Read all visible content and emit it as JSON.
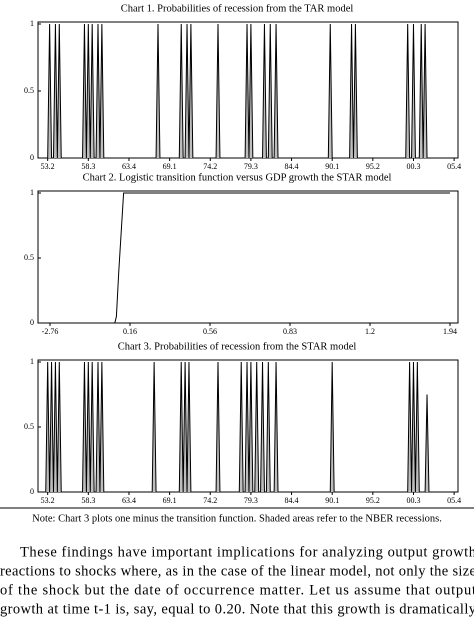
{
  "chart_data": [
    {
      "type": "line",
      "title": "Chart 1. Probabilities of recession from the TAR model",
      "color": "#000000",
      "fill_color": "#bdbdbd",
      "x": [
        0,
        1,
        2,
        3,
        4,
        5,
        5,
        6,
        7,
        18,
        19,
        20,
        20,
        21,
        22,
        22,
        23,
        24,
        25,
        26,
        27,
        27,
        28,
        29,
        56,
        57,
        58,
        68,
        69,
        70,
        71,
        72,
        73,
        73,
        74,
        75,
        87,
        88,
        89,
        102,
        103,
        104,
        104,
        105,
        106,
        111,
        112,
        113,
        114,
        115,
        116,
        117,
        118,
        119,
        145,
        146,
        147,
        156,
        157,
        158,
        158,
        159,
        160,
        185,
        186,
        187,
        188,
        189,
        190,
        192,
        193,
        194,
        194,
        195,
        196
      ],
      "values": [
        0,
        1,
        0,
        0,
        1,
        0,
        0,
        1,
        0,
        0,
        1,
        0,
        0,
        1,
        0,
        0,
        1,
        0,
        0,
        1,
        0,
        0,
        1,
        0,
        0,
        1,
        0,
        0,
        1,
        0,
        0,
        1,
        0,
        0,
        1,
        0,
        0,
        1,
        0,
        0,
        1,
        0,
        0,
        1,
        0,
        0,
        1,
        0,
        0,
        1,
        0,
        0,
        1,
        0,
        0,
        1,
        0,
        0,
        1,
        0,
        0,
        1,
        0,
        0,
        1,
        0,
        0,
        1,
        0,
        0,
        1,
        0,
        0,
        1,
        0
      ],
      "xlim": [
        -5,
        212
      ],
      "xticks": [
        {
          "value": 0,
          "label": "53.2"
        },
        {
          "value": 21,
          "label": "58.3"
        },
        {
          "value": 42,
          "label": "63.4"
        },
        {
          "value": 63,
          "label": "69.1"
        },
        {
          "value": 84,
          "label": "74.2"
        },
        {
          "value": 105,
          "label": "79.3"
        },
        {
          "value": 126,
          "label": "84.4"
        },
        {
          "value": 147,
          "label": "90.1"
        },
        {
          "value": 168,
          "label": "95.2"
        },
        {
          "value": 189,
          "label": "00.3"
        },
        {
          "value": 210,
          "label": "05.4"
        }
      ],
      "ylim": [
        0,
        1
      ],
      "yticks": [
        0,
        0.5,
        1
      ]
    },
    {
      "type": "line",
      "title": "Chart 2. Logistic transition function versus GDP growth the STAR model",
      "color": "#000000",
      "fill_color": "none",
      "x": [
        0.81,
        0.83,
        0.86,
        0.92,
        5
      ],
      "values": [
        0,
        0.05,
        0.4,
        1,
        1
      ],
      "xlim": [
        -0.15,
        5.1
      ],
      "xticks": [
        {
          "value": 0,
          "label": "-2.76"
        },
        {
          "value": 1,
          "label": "0.16"
        },
        {
          "value": 2,
          "label": "0.56"
        },
        {
          "value": 3,
          "label": "0.83"
        },
        {
          "value": 4,
          "label": "1.2"
        },
        {
          "value": 5,
          "label": "1.94"
        }
      ],
      "ylim": [
        0,
        1
      ],
      "yticks": [
        0,
        0.5,
        1
      ]
    },
    {
      "type": "line",
      "title": "Chart 3. Probabilities of recession from the STAR model",
      "color": "#000000",
      "fill_color": "#bdbdbd",
      "x": [
        -1,
        0,
        1,
        1,
        2,
        3,
        3,
        4,
        5,
        5,
        6,
        7,
        18,
        19,
        20,
        20,
        21,
        22,
        22,
        23,
        24,
        25,
        26,
        27,
        27,
        28,
        29,
        54,
        55,
        56,
        68,
        69,
        70,
        70,
        71,
        72,
        72,
        73,
        74,
        87,
        88,
        89,
        99,
        100,
        101,
        102,
        103,
        104,
        104,
        105,
        106,
        107,
        108,
        109,
        110,
        111,
        112,
        113,
        114,
        115,
        117,
        118,
        119,
        146,
        147,
        148,
        186,
        187,
        188,
        188,
        189,
        190,
        190,
        191,
        192,
        195,
        196,
        197
      ],
      "values": [
        0,
        1,
        0,
        0,
        1,
        0,
        0,
        1,
        0,
        0,
        1,
        0,
        0,
        1,
        0,
        0,
        1,
        0,
        0,
        1,
        0,
        0,
        1,
        0,
        0,
        1,
        0,
        0,
        1,
        0,
        0,
        1,
        0,
        0,
        1,
        0,
        0,
        1,
        0,
        0,
        1,
        0,
        0,
        1,
        0,
        0,
        1,
        0,
        0,
        1,
        0,
        0,
        1,
        0,
        0,
        1,
        0,
        0,
        1,
        0,
        0,
        1,
        0,
        0,
        1,
        0,
        0,
        1,
        0,
        0,
        1,
        0,
        0,
        1,
        0,
        0,
        0.75,
        0
      ],
      "xlim": [
        -5,
        212
      ],
      "xticks": [
        {
          "value": 0,
          "label": "53.2"
        },
        {
          "value": 21,
          "label": "58.3"
        },
        {
          "value": 42,
          "label": "63.4"
        },
        {
          "value": 63,
          "label": "69.1"
        },
        {
          "value": 84,
          "label": "74.2"
        },
        {
          "value": 105,
          "label": "79.3"
        },
        {
          "value": 126,
          "label": "84.4"
        },
        {
          "value": 147,
          "label": "90.1"
        },
        {
          "value": 168,
          "label": "95.2"
        },
        {
          "value": 189,
          "label": "00.3"
        },
        {
          "value": 210,
          "label": "05.4"
        }
      ],
      "ylim": [
        0,
        1
      ],
      "yticks": [
        0,
        0.5,
        1
      ]
    }
  ],
  "note": "Note: Chart 3 plots one minus the transition function. Shaded areas refer to the NBER recessions.",
  "paragraph": [
    "These findings have important implications for analyzing output growth",
    "reactions to shocks where, as in the case of the linear model, not only the size",
    "of the shock but the date of occurrence matter. Let us assume that output",
    "growth at time t-1 is, say, equal to 0.20. Note that this growth is dramatically"
  ]
}
